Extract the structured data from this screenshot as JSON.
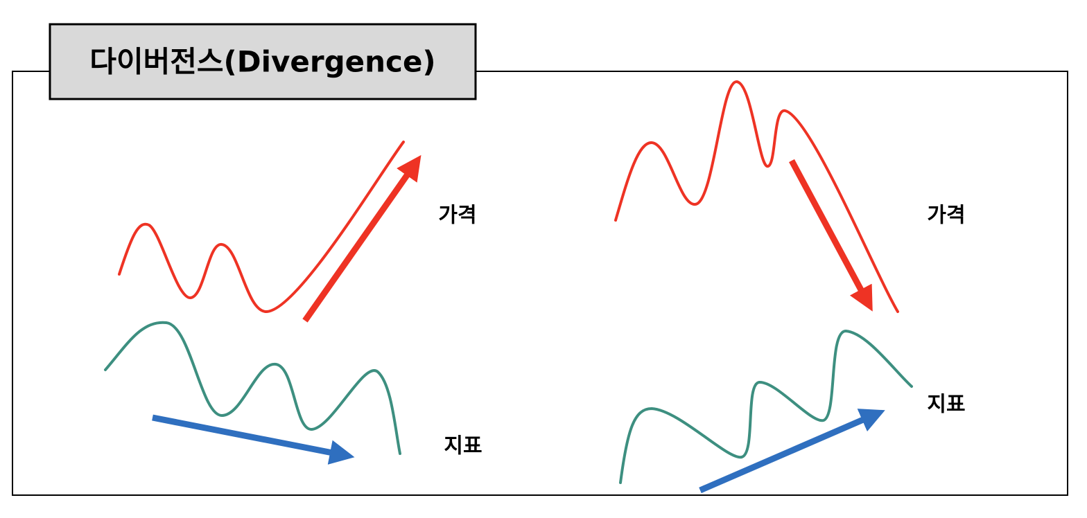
{
  "title": "다이버전스(Divergence)",
  "panels": [
    {
      "price_label": "가격",
      "indicator_label": "지표"
    },
    {
      "price_label": "가격",
      "indicator_label": "지표"
    }
  ]
}
